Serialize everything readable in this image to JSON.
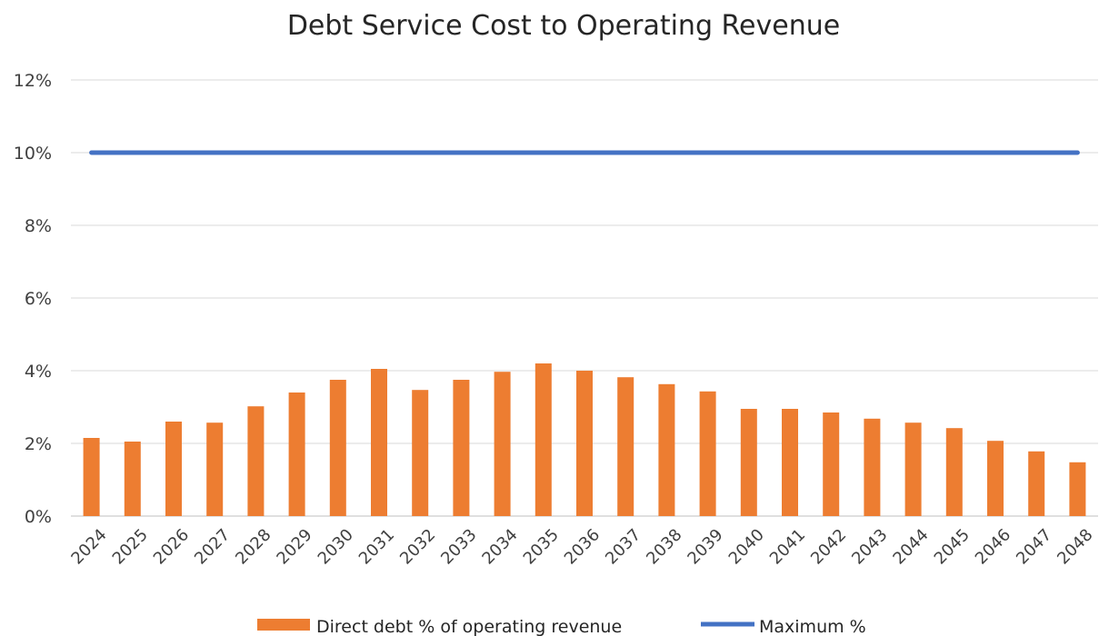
{
  "chart_data": {
    "type": "bar",
    "title": "Debt Service Cost to Operating Revenue",
    "xlabel": "",
    "ylabel": "",
    "ylim": [
      0,
      12
    ],
    "yticks": [
      0,
      2,
      4,
      6,
      8,
      10,
      12
    ],
    "ytick_labels": [
      "0%",
      "2%",
      "4%",
      "6%",
      "8%",
      "10%",
      "12%"
    ],
    "grid": true,
    "legend_position": "bottom",
    "categories": [
      "2024",
      "2025",
      "2026",
      "2027",
      "2028",
      "2029",
      "2030",
      "2031",
      "2032",
      "2033",
      "2034",
      "2035",
      "2036",
      "2037",
      "2038",
      "2039",
      "2040",
      "2041",
      "2042",
      "2043",
      "2044",
      "2045",
      "2046",
      "2047",
      "2048"
    ],
    "series": [
      {
        "name": "Direct debt % of operating revenue",
        "type": "bar",
        "color": "#ED7D31",
        "values": [
          2.15,
          2.05,
          2.6,
          2.57,
          3.02,
          3.4,
          3.75,
          4.05,
          3.47,
          3.75,
          3.97,
          4.2,
          4.0,
          3.82,
          3.63,
          3.43,
          2.95,
          2.95,
          2.85,
          2.68,
          2.57,
          2.42,
          2.07,
          1.78,
          1.48
        ]
      },
      {
        "name": "Maximum %",
        "type": "line",
        "color": "#4472C4",
        "values": [
          10,
          10,
          10,
          10,
          10,
          10,
          10,
          10,
          10,
          10,
          10,
          10,
          10,
          10,
          10,
          10,
          10,
          10,
          10,
          10,
          10,
          10,
          10,
          10,
          10
        ]
      }
    ]
  }
}
